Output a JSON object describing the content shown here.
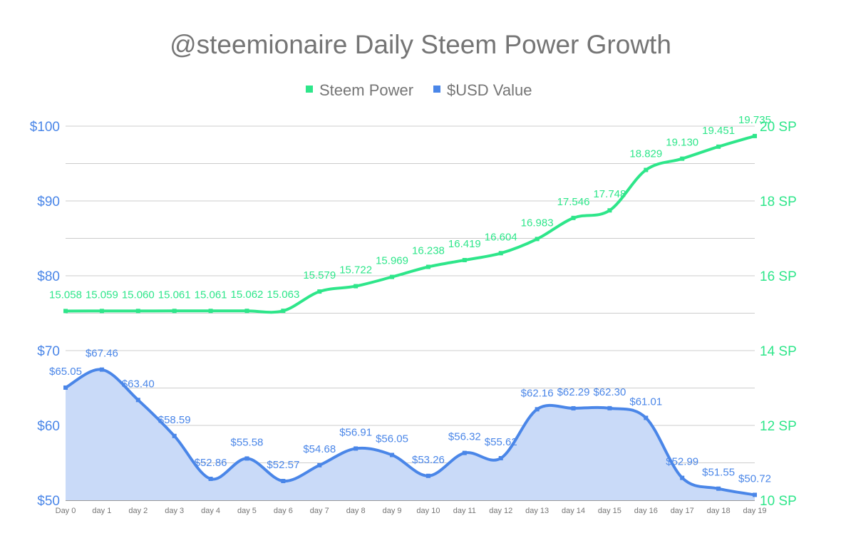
{
  "chart_data": {
    "type": "line",
    "title": "@steemionaire Daily Steem Power Growth",
    "categories": [
      "Day 0",
      "day 1",
      "day 2",
      "day 3",
      "day 4",
      "day 5",
      "day 6",
      "day 7",
      "day 8",
      "day 9",
      "day 10",
      "day 11",
      "day 12",
      "day 13",
      "day 14",
      "day 15",
      "day 16",
      "day 17",
      "day 18",
      "day 19"
    ],
    "legend_position": "top",
    "grid": true,
    "series": [
      {
        "name": "Steem Power",
        "axis": "right",
        "color": "#2ee68a",
        "values": [
          15.058,
          15.059,
          15.06,
          15.061,
          15.061,
          15.062,
          15.063,
          15.579,
          15.722,
          15.969,
          16.238,
          16.419,
          16.604,
          16.983,
          17.546,
          17.748,
          18.829,
          19.13,
          19.451,
          19.735
        ],
        "labels": [
          "15.058",
          "15.059",
          "15.060",
          "15.061",
          "15.061",
          "15.062",
          "15.063",
          "15.579",
          "15.722",
          "15.969",
          "16.238",
          "16.419",
          "16.604",
          "16.983",
          "17.546",
          "17.748",
          "18.829",
          "19.130",
          "19.451",
          "19.735"
        ]
      },
      {
        "name": "$USD Value",
        "axis": "left",
        "color": "#4a86e8",
        "area_color": "#c9daf8",
        "values": [
          65.05,
          67.46,
          63.4,
          58.59,
          52.86,
          55.58,
          52.57,
          54.68,
          56.91,
          56.05,
          53.26,
          56.32,
          55.62,
          62.16,
          62.29,
          62.3,
          61.01,
          52.99,
          51.55,
          50.72
        ],
        "labels": [
          "$65.05",
          "$67.46",
          "$63.40",
          "$58.59",
          "$52.86",
          "$55.58",
          "$52.57",
          "$54.68",
          "$56.91",
          "$56.05",
          "$53.26",
          "$56.32",
          "$55.62",
          "$62.16",
          "$62.29",
          "$62.30",
          "$61.01",
          "$52.99",
          "$51.55",
          "$50.72"
        ]
      }
    ],
    "y_left": {
      "range": [
        50,
        100
      ],
      "ticks": [
        "$50",
        "$60",
        "$70",
        "$80",
        "$90",
        "$100"
      ],
      "tick_values": [
        50,
        60,
        70,
        80,
        90,
        100
      ]
    },
    "y_right": {
      "range": [
        10,
        20
      ],
      "ticks": [
        "10 SP",
        "12 SP",
        "14 SP",
        "16 SP",
        "18 SP",
        "20 SP"
      ],
      "tick_values": [
        10,
        12,
        14,
        16,
        18,
        20
      ]
    }
  }
}
